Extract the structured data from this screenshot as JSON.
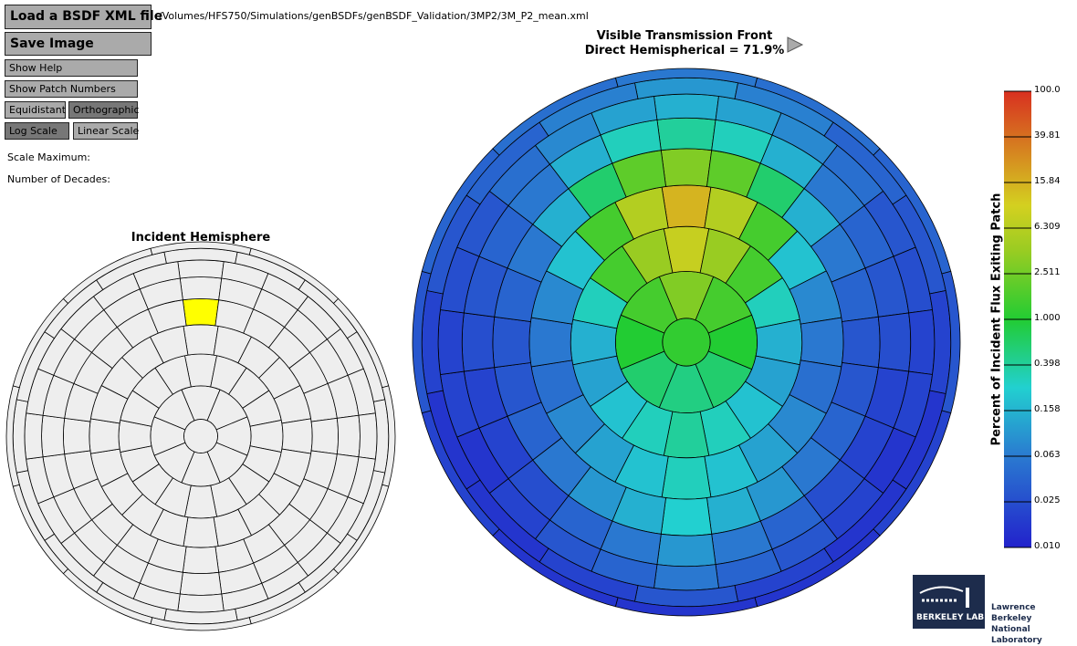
{
  "controls": {
    "load": "Load a BSDF XML file",
    "save": "Save Image",
    "help": "Show Help",
    "patch_numbers": "Show Patch Numbers",
    "equidistant": "Equidistant",
    "orthographic": "Orthographic",
    "log": "Log Scale",
    "linear": "Linear Scale",
    "scale_max": "Scale Maximum:",
    "decades": "Number of Decades:"
  },
  "file_path": "/Volumes/HFS750/Simulations/genBSDFs/genBSDF_Validation/3MP2/3M_P2_mean.xml",
  "incident": {
    "title": "Incident Hemisphere",
    "rings": [
      1,
      8,
      16,
      20,
      24,
      24,
      24,
      16,
      12
    ],
    "selected_ring": 4,
    "selected_patch": 0,
    "fill": "#eeeeee",
    "highlight": "#ffff00"
  },
  "output": {
    "title1": "Visible Transmission Front",
    "title2": "Direct Hemispherical = 71.9%",
    "values": [
      [
        1.2
      ],
      [
        3,
        1.5,
        1,
        0.6,
        0.5,
        0.6,
        1,
        1.5
      ],
      [
        8,
        4,
        1.5,
        0.3,
        0.15,
        0.12,
        0.2,
        0.3,
        0.4,
        0.3,
        0.2,
        0.12,
        0.15,
        0.3,
        1.5,
        4
      ],
      [
        15,
        6,
        1.5,
        0.2,
        0.08,
        0.06,
        0.05,
        0.08,
        0.12,
        0.2,
        0.3,
        0.2,
        0.12,
        0.08,
        0.05,
        0.06,
        0.08,
        0.2,
        1.5,
        6
      ],
      [
        3,
        2,
        0.6,
        0.15,
        0.06,
        0.04,
        0.03,
        0.03,
        0.04,
        0.06,
        0.1,
        0.15,
        0.25,
        0.15,
        0.1,
        0.06,
        0.04,
        0.03,
        0.03,
        0.04,
        0.06,
        0.15,
        0.6,
        2
      ],
      [
        0.4,
        0.3,
        0.15,
        0.06,
        0.04,
        0.03,
        0.025,
        0.02,
        0.02,
        0.025,
        0.04,
        0.06,
        0.1,
        0.06,
        0.04,
        0.025,
        0.02,
        0.02,
        0.025,
        0.03,
        0.04,
        0.06,
        0.15,
        0.3
      ],
      [
        0.15,
        0.12,
        0.08,
        0.05,
        0.03,
        0.025,
        0.02,
        0.02,
        0.015,
        0.02,
        0.03,
        0.04,
        0.06,
        0.04,
        0.03,
        0.02,
        0.015,
        0.02,
        0.02,
        0.025,
        0.03,
        0.05,
        0.08,
        0.12
      ],
      [
        0.1,
        0.07,
        0.04,
        0.03,
        0.02,
        0.015,
        0.015,
        0.02,
        0.03,
        0.02,
        0.015,
        0.015,
        0.02,
        0.03,
        0.04,
        0.07
      ],
      [
        0.06,
        0.05,
        0.04,
        0.03,
        0.02,
        0.015,
        0.015,
        0.015,
        0.02,
        0.03,
        0.04,
        0.05
      ]
    ]
  },
  "colorbar": {
    "label": "Percent of Incident Flux Exiting Patch",
    "ticks": [
      "100.0",
      "39.81",
      "15.84",
      "6.309",
      "2.511",
      "1.000",
      "0.398",
      "0.158",
      "0.063",
      "0.025",
      "0.010"
    ],
    "min": 0.01,
    "max": 100
  },
  "logo": {
    "name": "BERKELEY LAB",
    "line1": "Lawrence Berkeley",
    "line2": "National Laboratory"
  }
}
